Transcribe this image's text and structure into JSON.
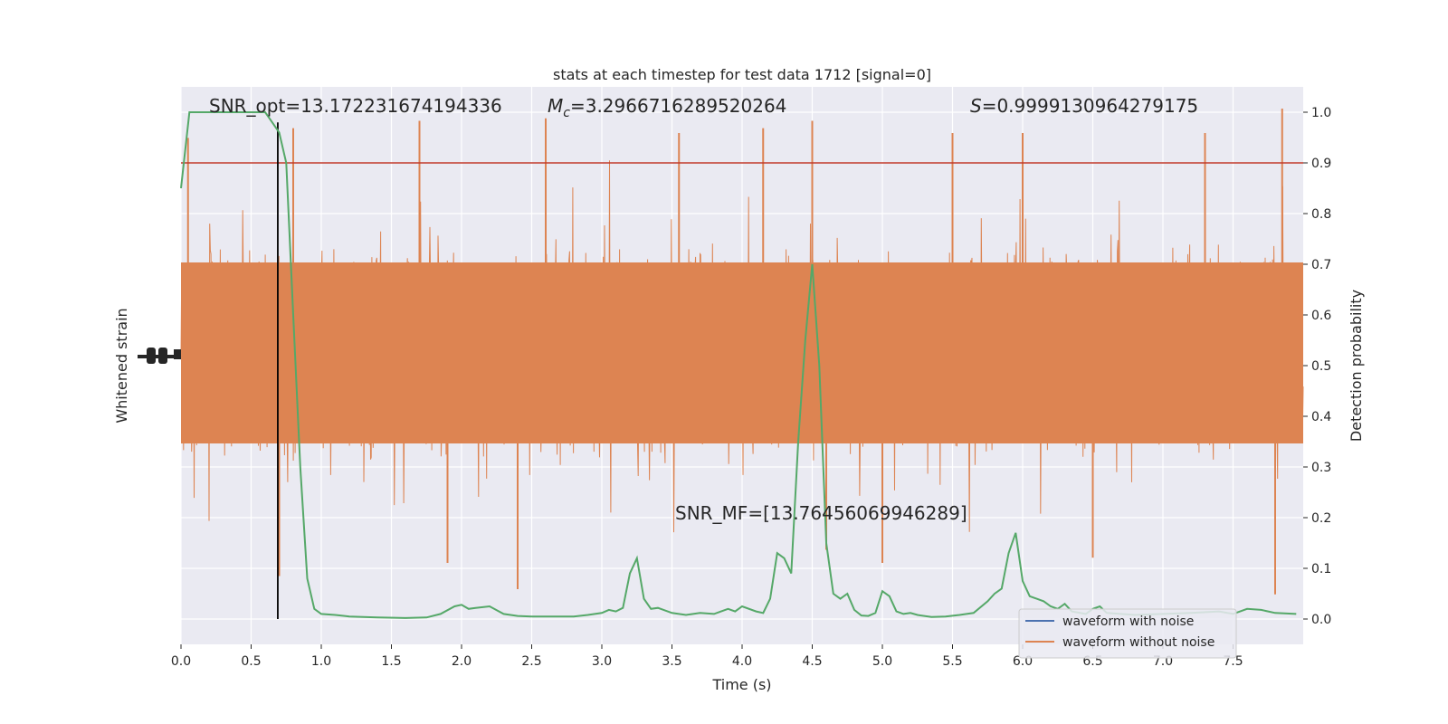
{
  "chart_data": {
    "type": "line",
    "title": "stats at each timestep for test data 1712 [signal=0]",
    "xlabel": "Time (s)",
    "ylabel_left": "Whitened strain",
    "ylabel_right": "Detection probability",
    "xlim": [
      0,
      8
    ],
    "ylim_right": [
      -0.05,
      1.05
    ],
    "x_ticks": [
      "0.0",
      "0.5",
      "1.0",
      "1.5",
      "2.0",
      "2.5",
      "3.0",
      "3.5",
      "4.0",
      "4.5",
      "5.0",
      "5.5",
      "6.0",
      "6.5",
      "7.0",
      "7.5"
    ],
    "y_ticks_right": [
      "0.0",
      "0.1",
      "0.2",
      "0.3",
      "0.4",
      "0.5",
      "0.6",
      "0.7",
      "0.8",
      "0.9",
      "1.0"
    ],
    "threshold": 0.9,
    "marker_time": 0.69,
    "grid": true,
    "legend_position": "lower-right",
    "legend": [
      "waveform with noise",
      "waveform without noise"
    ],
    "annotations": {
      "snr_opt": "SNR_opt=13.172231674194336",
      "mc_symbol": "M",
      "mc_sub": "c",
      "mc_value": "=3.2966716289520264",
      "s_symbol": "S",
      "s_value": "=0.9999130964279175",
      "snr_mf": "SNR_MF=[13.76456069946289]"
    },
    "detection_probability": {
      "x": [
        0.0,
        0.06,
        0.12,
        0.2,
        0.3,
        0.4,
        0.5,
        0.6,
        0.65,
        0.7,
        0.75,
        0.8,
        0.85,
        0.9,
        0.95,
        1.0,
        1.1,
        1.2,
        1.4,
        1.6,
        1.75,
        1.85,
        1.95,
        2.0,
        2.05,
        2.1,
        2.2,
        2.3,
        2.4,
        2.5,
        2.6,
        2.8,
        2.9,
        3.0,
        3.05,
        3.1,
        3.15,
        3.2,
        3.25,
        3.3,
        3.35,
        3.4,
        3.5,
        3.6,
        3.65,
        3.7,
        3.8,
        3.85,
        3.9,
        3.95,
        4.0,
        4.1,
        4.15,
        4.2,
        4.25,
        4.3,
        4.35,
        4.4,
        4.45,
        4.5,
        4.55,
        4.6,
        4.65,
        4.7,
        4.75,
        4.8,
        4.85,
        4.9,
        4.95,
        5.0,
        5.05,
        5.1,
        5.15,
        5.2,
        5.25,
        5.35,
        5.45,
        5.55,
        5.6,
        5.65,
        5.75,
        5.8,
        5.85,
        5.9,
        5.95,
        6.0,
        6.05,
        6.1,
        6.15,
        6.2,
        6.25,
        6.3,
        6.35,
        6.45,
        6.5,
        6.55,
        6.6,
        6.7,
        6.8,
        7.0,
        7.2,
        7.4,
        7.5,
        7.6,
        7.7,
        7.8,
        7.95
      ],
      "y": [
        0.85,
        1.0,
        1.0,
        1.0,
        1.0,
        1.0,
        1.0,
        1.0,
        0.98,
        0.96,
        0.9,
        0.6,
        0.3,
        0.08,
        0.02,
        0.01,
        0.008,
        0.005,
        0.003,
        0.002,
        0.003,
        0.01,
        0.025,
        0.028,
        0.02,
        0.022,
        0.025,
        0.01,
        0.006,
        0.005,
        0.005,
        0.005,
        0.008,
        0.012,
        0.018,
        0.015,
        0.022,
        0.09,
        0.12,
        0.04,
        0.02,
        0.022,
        0.012,
        0.008,
        0.01,
        0.012,
        0.01,
        0.015,
        0.02,
        0.015,
        0.025,
        0.015,
        0.012,
        0.04,
        0.13,
        0.12,
        0.09,
        0.35,
        0.55,
        0.7,
        0.5,
        0.15,
        0.05,
        0.04,
        0.05,
        0.018,
        0.007,
        0.006,
        0.012,
        0.055,
        0.045,
        0.015,
        0.01,
        0.012,
        0.008,
        0.004,
        0.005,
        0.008,
        0.01,
        0.012,
        0.035,
        0.05,
        0.06,
        0.13,
        0.17,
        0.075,
        0.045,
        0.04,
        0.035,
        0.025,
        0.02,
        0.03,
        0.015,
        0.01,
        0.02,
        0.025,
        0.012,
        0.01,
        0.008,
        0.01,
        0.012,
        0.015,
        0.01,
        0.02,
        0.018,
        0.012,
        0.01
      ]
    },
    "strain_without_noise": {
      "amplitude_range": [
        -1.0,
        1.0
      ],
      "peaks_high": [
        [
          0.05,
          0.88
        ],
        [
          0.8,
          0.92
        ],
        [
          1.7,
          0.95
        ],
        [
          2.6,
          0.96
        ],
        [
          3.55,
          0.9
        ],
        [
          4.15,
          0.92
        ],
        [
          4.5,
          0.95
        ],
        [
          5.5,
          0.9
        ],
        [
          6.0,
          0.9
        ],
        [
          7.3,
          0.9
        ],
        [
          7.85,
          1.0
        ]
      ],
      "peaks_low": [
        [
          0.7,
          -0.85
        ],
        [
          1.9,
          -0.8
        ],
        [
          2.4,
          -0.9
        ],
        [
          4.6,
          -0.75
        ],
        [
          5.0,
          -0.8
        ],
        [
          6.5,
          -0.78
        ],
        [
          7.8,
          -0.92
        ]
      ]
    }
  }
}
